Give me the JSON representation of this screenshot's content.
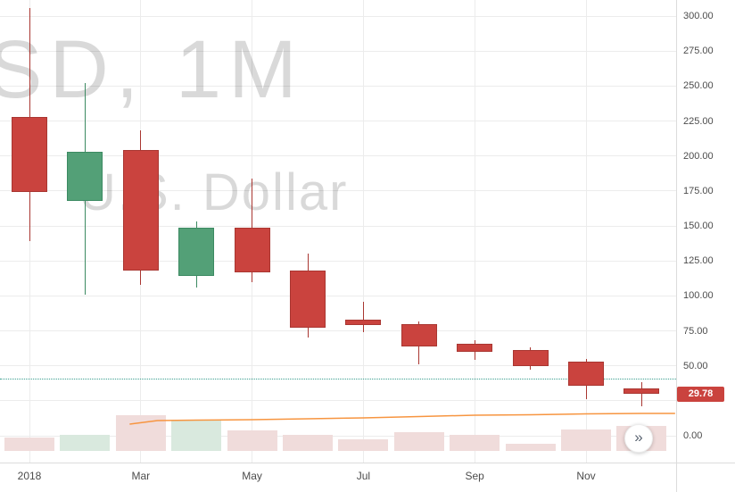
{
  "watermark": {
    "line1": "SD, 1M",
    "line2": "U.S. Dollar"
  },
  "price_axis": {
    "labels": [
      {
        "text": "300.00",
        "value": 300
      },
      {
        "text": "275.00",
        "value": 275
      },
      {
        "text": "250.00",
        "value": 250
      },
      {
        "text": "225.00",
        "value": 225
      },
      {
        "text": "200.00",
        "value": 200
      },
      {
        "text": "175.00",
        "value": 175
      },
      {
        "text": "150.00",
        "value": 150
      },
      {
        "text": "125.00",
        "value": 125
      },
      {
        "text": "100.00",
        "value": 100
      },
      {
        "text": "75.00",
        "value": 75
      },
      {
        "text": "50.00",
        "value": 50
      },
      {
        "text": "0.00",
        "value": 0
      }
    ],
    "current_price_label": "29.78"
  },
  "time_axis": {
    "labels": [
      {
        "text": "2018",
        "month_index": 0
      },
      {
        "text": "Mar",
        "month_index": 2
      },
      {
        "text": "May",
        "month_index": 4
      },
      {
        "text": "Jul",
        "month_index": 6
      },
      {
        "text": "Sep",
        "month_index": 8
      },
      {
        "text": "Nov",
        "month_index": 10
      }
    ]
  },
  "controls": {
    "goto_latest_icon": "»"
  },
  "colors": {
    "up": "#53a077",
    "up_border": "#3c8a62",
    "down": "#ca433e",
    "down_border": "#a93631",
    "vol_up": "#d9e9de",
    "vol_down": "#f0dcdb",
    "indicator": "#f79540",
    "price_line": "#3a9e8f",
    "badge_bg": "#ca433e",
    "grid": "#ececec",
    "axis_text": "#4c4c4c",
    "watermark": "rgba(0,0,0,0.15)"
  },
  "chart_data": {
    "type": "candlestick",
    "timeframe": "1M",
    "quote_currency": "U.S. Dollar",
    "months": [
      "Jan 2018",
      "Feb 2018",
      "Mar 2018",
      "Apr 2018",
      "May 2018",
      "Jun 2018",
      "Jul 2018",
      "Aug 2018",
      "Sep 2018",
      "Oct 2018",
      "Nov 2018",
      "Dec 2018"
    ],
    "ylim": [
      0,
      300
    ],
    "grid_step": 25,
    "candles": [
      {
        "open": 228,
        "high": 306,
        "low": 139,
        "close": 174
      },
      {
        "open": 168,
        "high": 252,
        "low": 101,
        "close": 203
      },
      {
        "open": 204,
        "high": 218,
        "low": 108,
        "close": 118
      },
      {
        "open": 114,
        "high": 153,
        "low": 106,
        "close": 149
      },
      {
        "open": 149,
        "high": 184,
        "low": 110,
        "close": 117
      },
      {
        "open": 118,
        "high": 130,
        "low": 70,
        "close": 77
      },
      {
        "open": 83,
        "high": 96,
        "low": 74,
        "close": 79
      },
      {
        "open": 80,
        "high": 82,
        "low": 51,
        "close": 64
      },
      {
        "open": 66,
        "high": 68,
        "low": 54,
        "close": 60
      },
      {
        "open": 61,
        "high": 63,
        "low": 47,
        "close": 50
      },
      {
        "open": 53,
        "high": 55,
        "low": 26,
        "close": 36
      },
      {
        "open": 34,
        "high": 38,
        "low": 21,
        "close": 29.78
      }
    ],
    "volume": [
      15,
      18,
      40,
      35,
      23,
      18,
      13,
      21,
      18,
      8,
      24,
      28
    ],
    "volume_ma_line": [
      {
        "i": 1.8,
        "v": 30
      },
      {
        "i": 2.3,
        "v": 34
      },
      {
        "i": 3,
        "v": 34.5
      },
      {
        "i": 4,
        "v": 35
      },
      {
        "i": 5,
        "v": 36
      },
      {
        "i": 6,
        "v": 37
      },
      {
        "i": 7,
        "v": 38.5
      },
      {
        "i": 8,
        "v": 40
      },
      {
        "i": 9,
        "v": 40.5
      },
      {
        "i": 10,
        "v": 41.5
      },
      {
        "i": 11,
        "v": 42
      },
      {
        "i": 11.6,
        "v": 42
      }
    ],
    "price_level_line": {
      "price": 41
    },
    "current_price": 29.78
  }
}
